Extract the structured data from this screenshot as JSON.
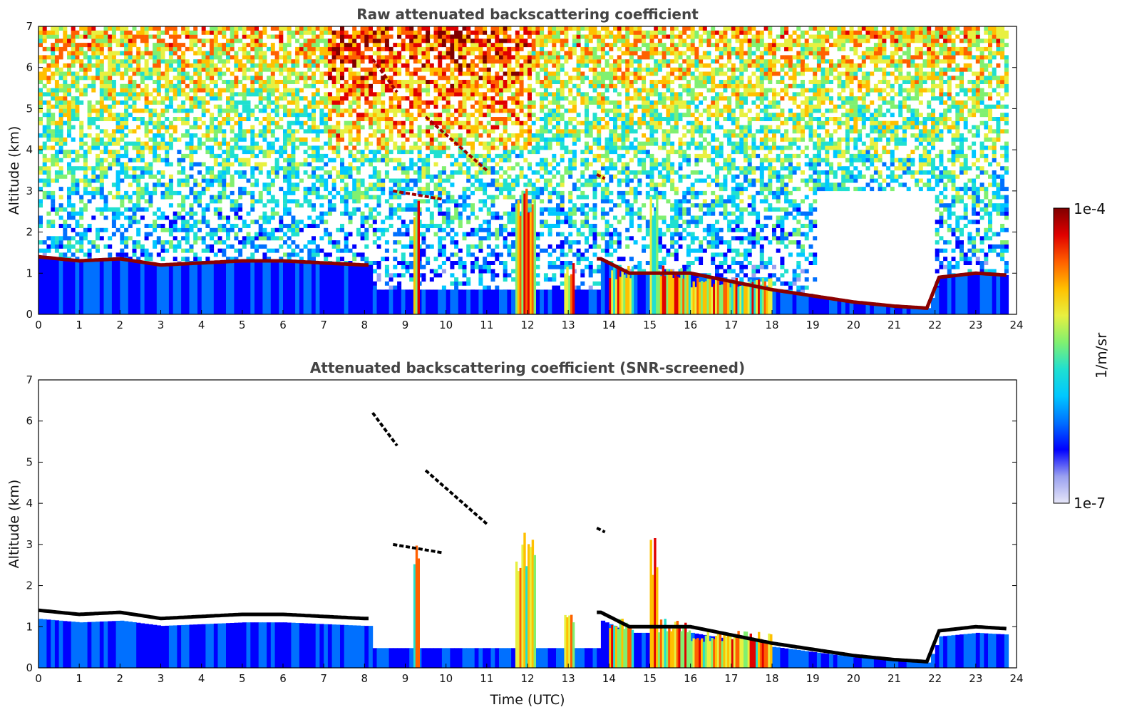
{
  "chart_data": [
    {
      "type": "heatmap",
      "title": "Raw attenuated backscattering coefficient",
      "xlabel": "",
      "ylabel": "Altitude (km)",
      "xlim": [
        0,
        24
      ],
      "ylim": [
        0,
        7
      ],
      "xticks": [
        "0",
        "1",
        "2",
        "3",
        "4",
        "5",
        "6",
        "7",
        "8",
        "9",
        "10",
        "11",
        "12",
        "13",
        "14",
        "15",
        "16",
        "17",
        "18",
        "19",
        "20",
        "21",
        "22",
        "23",
        "24"
      ],
      "yticks": [
        "0",
        "1",
        "2",
        "3",
        "4",
        "5",
        "6",
        "7"
      ],
      "screened": false,
      "boundary_layer_top_km": [
        [
          0,
          1.4
        ],
        [
          1,
          1.3
        ],
        [
          2,
          1.35
        ],
        [
          3,
          1.2
        ],
        [
          4,
          1.25
        ],
        [
          5,
          1.3
        ],
        [
          6,
          1.3
        ],
        [
          7,
          1.25
        ],
        [
          8,
          1.2
        ]
      ],
      "cloud_layer_km": [
        [
          13.8,
          1.35
        ],
        [
          14.5,
          1.0
        ],
        [
          16,
          1.0
        ],
        [
          17,
          0.8
        ],
        [
          18,
          0.6
        ],
        [
          19,
          0.45
        ],
        [
          20,
          0.3
        ],
        [
          21,
          0.2
        ],
        [
          21.8,
          0.15
        ],
        [
          22.1,
          0.9
        ],
        [
          23,
          1.0
        ],
        [
          23.8,
          0.95
        ]
      ],
      "elevated_layers": [
        {
          "x": [
            8.2,
            8.8
          ],
          "y": [
            6.2,
            5.4
          ]
        },
        {
          "x": [
            9.5,
            11.0
          ],
          "y": [
            4.8,
            3.5
          ]
        },
        {
          "x": [
            8.7,
            9.9
          ],
          "y": [
            3.0,
            2.8
          ]
        },
        {
          "x": [
            13.7,
            13.9
          ],
          "y": [
            3.4,
            3.3
          ]
        }
      ],
      "precipitation_shafts": [
        {
          "x_start": 9.2,
          "x_end": 9.35,
          "top_km": 3.0
        },
        {
          "x_start": 11.7,
          "x_end": 12.2,
          "top_km": 3.3
        },
        {
          "x_start": 12.9,
          "x_end": 13.15,
          "top_km": 1.3
        },
        {
          "x_start": 14.0,
          "x_end": 14.6,
          "top_km": 1.2
        },
        {
          "x_start": 15.0,
          "x_end": 15.2,
          "top_km": 3.2
        },
        {
          "x_start": 15.2,
          "x_end": 16.0,
          "top_km": 1.2
        },
        {
          "x_start": 16.0,
          "x_end": 18.0,
          "top_km": 0.9
        }
      ]
    },
    {
      "type": "heatmap",
      "title": "Attenuated backscattering coefficient (SNR-screened)",
      "xlabel": "Time (UTC)",
      "ylabel": "Altitude (km)",
      "xlim": [
        0,
        24
      ],
      "ylim": [
        0,
        7
      ],
      "xticks": [
        "0",
        "1",
        "2",
        "3",
        "4",
        "5",
        "6",
        "7",
        "8",
        "9",
        "10",
        "11",
        "12",
        "13",
        "14",
        "15",
        "16",
        "17",
        "18",
        "19",
        "20",
        "21",
        "22",
        "23",
        "24"
      ],
      "yticks": [
        "0",
        "1",
        "2",
        "3",
        "4",
        "5",
        "6",
        "7"
      ],
      "screened": true
    }
  ],
  "colorbar": {
    "label": "1/m/sr",
    "max_label": "1e-4",
    "min_label": "1e-7",
    "colormap": [
      "#e6e6f8",
      "#9aa0f0",
      "#0000ff",
      "#0070ff",
      "#00c8ff",
      "#20e0d0",
      "#80f070",
      "#e8f040",
      "#ffc000",
      "#ff6000",
      "#e00000",
      "#800000"
    ]
  }
}
